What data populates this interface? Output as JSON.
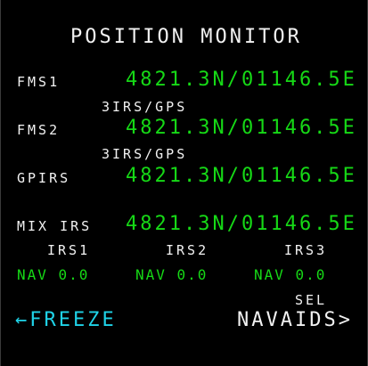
{
  "page_title": "POSITION MONITOR",
  "fms1": {
    "label": "FMS1",
    "position": "4821.3N/01146.5E",
    "source": "3IRS/GPS"
  },
  "fms2": {
    "label": "FMS2",
    "position": "4821.3N/01146.5E",
    "source": "3IRS/GPS"
  },
  "gpirs": {
    "label": "GPIRS",
    "position": "4821.3N/01146.5E"
  },
  "mix_irs": {
    "label": "MIX IRS",
    "position": "4821.3N/01146.5E"
  },
  "irs": [
    {
      "label": "IRS1",
      "status": "NAV 0.0"
    },
    {
      "label": "IRS2",
      "status": "NAV 0.0"
    },
    {
      "label": "IRS3",
      "status": "NAV 0.0"
    }
  ],
  "left_prompt": "←FREEZE",
  "right_header": "SEL",
  "right_prompt": "NAVAIDS>",
  "colors": {
    "white": "#f2f2f2",
    "green": "#16d916",
    "cyan": "#1fd3e8",
    "background": "#000000"
  }
}
